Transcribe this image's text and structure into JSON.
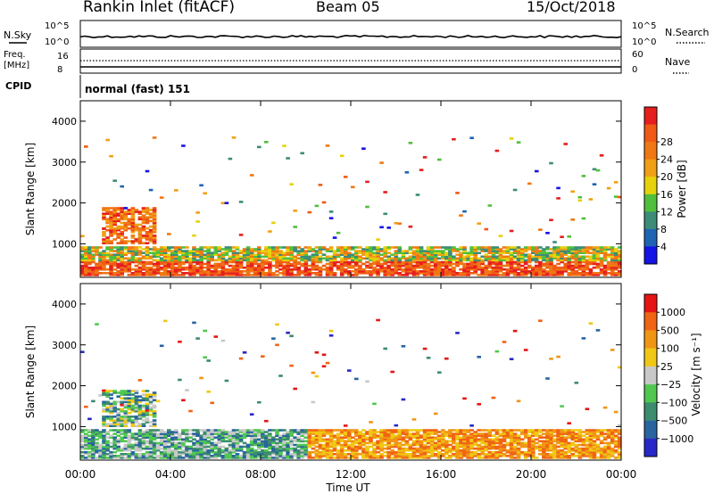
{
  "header": {
    "title": "Rankin Inlet (fitACF)",
    "beam": "Beam 05",
    "date": "15/Oct/2018"
  },
  "top_panels": {
    "nsky_label": "N.Sky",
    "nsearch_label": "N.Search",
    "noise_ticks": [
      "10^5",
      "10^0"
    ],
    "freq_label_1": "Freq.",
    "freq_label_2": "[MHz]",
    "freq_ticks_left": [
      "16",
      "8"
    ],
    "nave_label": "Nave",
    "nave_ticks": [
      "60",
      "0"
    ],
    "cpid_label": "CPID",
    "cpid_text": "normal (fast) 151"
  },
  "colors": {
    "power_scale": [
      "#1414e6",
      "#1e64b4",
      "#3c8c78",
      "#50c03c",
      "#e6d20a",
      "#f0a014",
      "#f07814",
      "#f05a14",
      "#e61e1e"
    ],
    "velocity_scale": [
      "#2828c8",
      "#2864a0",
      "#3c8c6e",
      "#50c850",
      "#c8c8c8",
      "#f0c814",
      "#f09614",
      "#f06414",
      "#e61414"
    ]
  },
  "chart_data": [
    {
      "type": "heatmap",
      "name": "power",
      "xlabel": "",
      "ylabel": "Slant Range [km]",
      "x_ticks": [
        "00:00",
        "04:00",
        "08:00",
        "12:00",
        "16:00",
        "20:00",
        "00:00"
      ],
      "xlim_hours": [
        0,
        24
      ],
      "ylim": [
        180,
        4500
      ],
      "y_ticks": [
        1000,
        2000,
        3000,
        4000
      ],
      "colorbar": {
        "label": "Power [dB]",
        "range": [
          0,
          32
        ],
        "ticks": [
          "4",
          "8",
          "12",
          "16",
          "20",
          "24",
          "28"
        ]
      }
    },
    {
      "type": "heatmap",
      "name": "velocity",
      "xlabel": "Time UT",
      "ylabel": "Slant Range [km]",
      "x_ticks": [
        "00:00",
        "04:00",
        "08:00",
        "12:00",
        "16:00",
        "20:00",
        "00:00"
      ],
      "xlim_hours": [
        0,
        24
      ],
      "ylim": [
        180,
        4500
      ],
      "y_ticks": [
        1000,
        2000,
        3000,
        4000
      ],
      "colorbar": {
        "label": "Velocity [m s⁻¹]",
        "range": [
          -1500,
          1500
        ],
        "ticks": [
          "1000",
          "500",
          "100",
          "25",
          "−25",
          "−100",
          "−500",
          "−1000"
        ]
      }
    }
  ]
}
